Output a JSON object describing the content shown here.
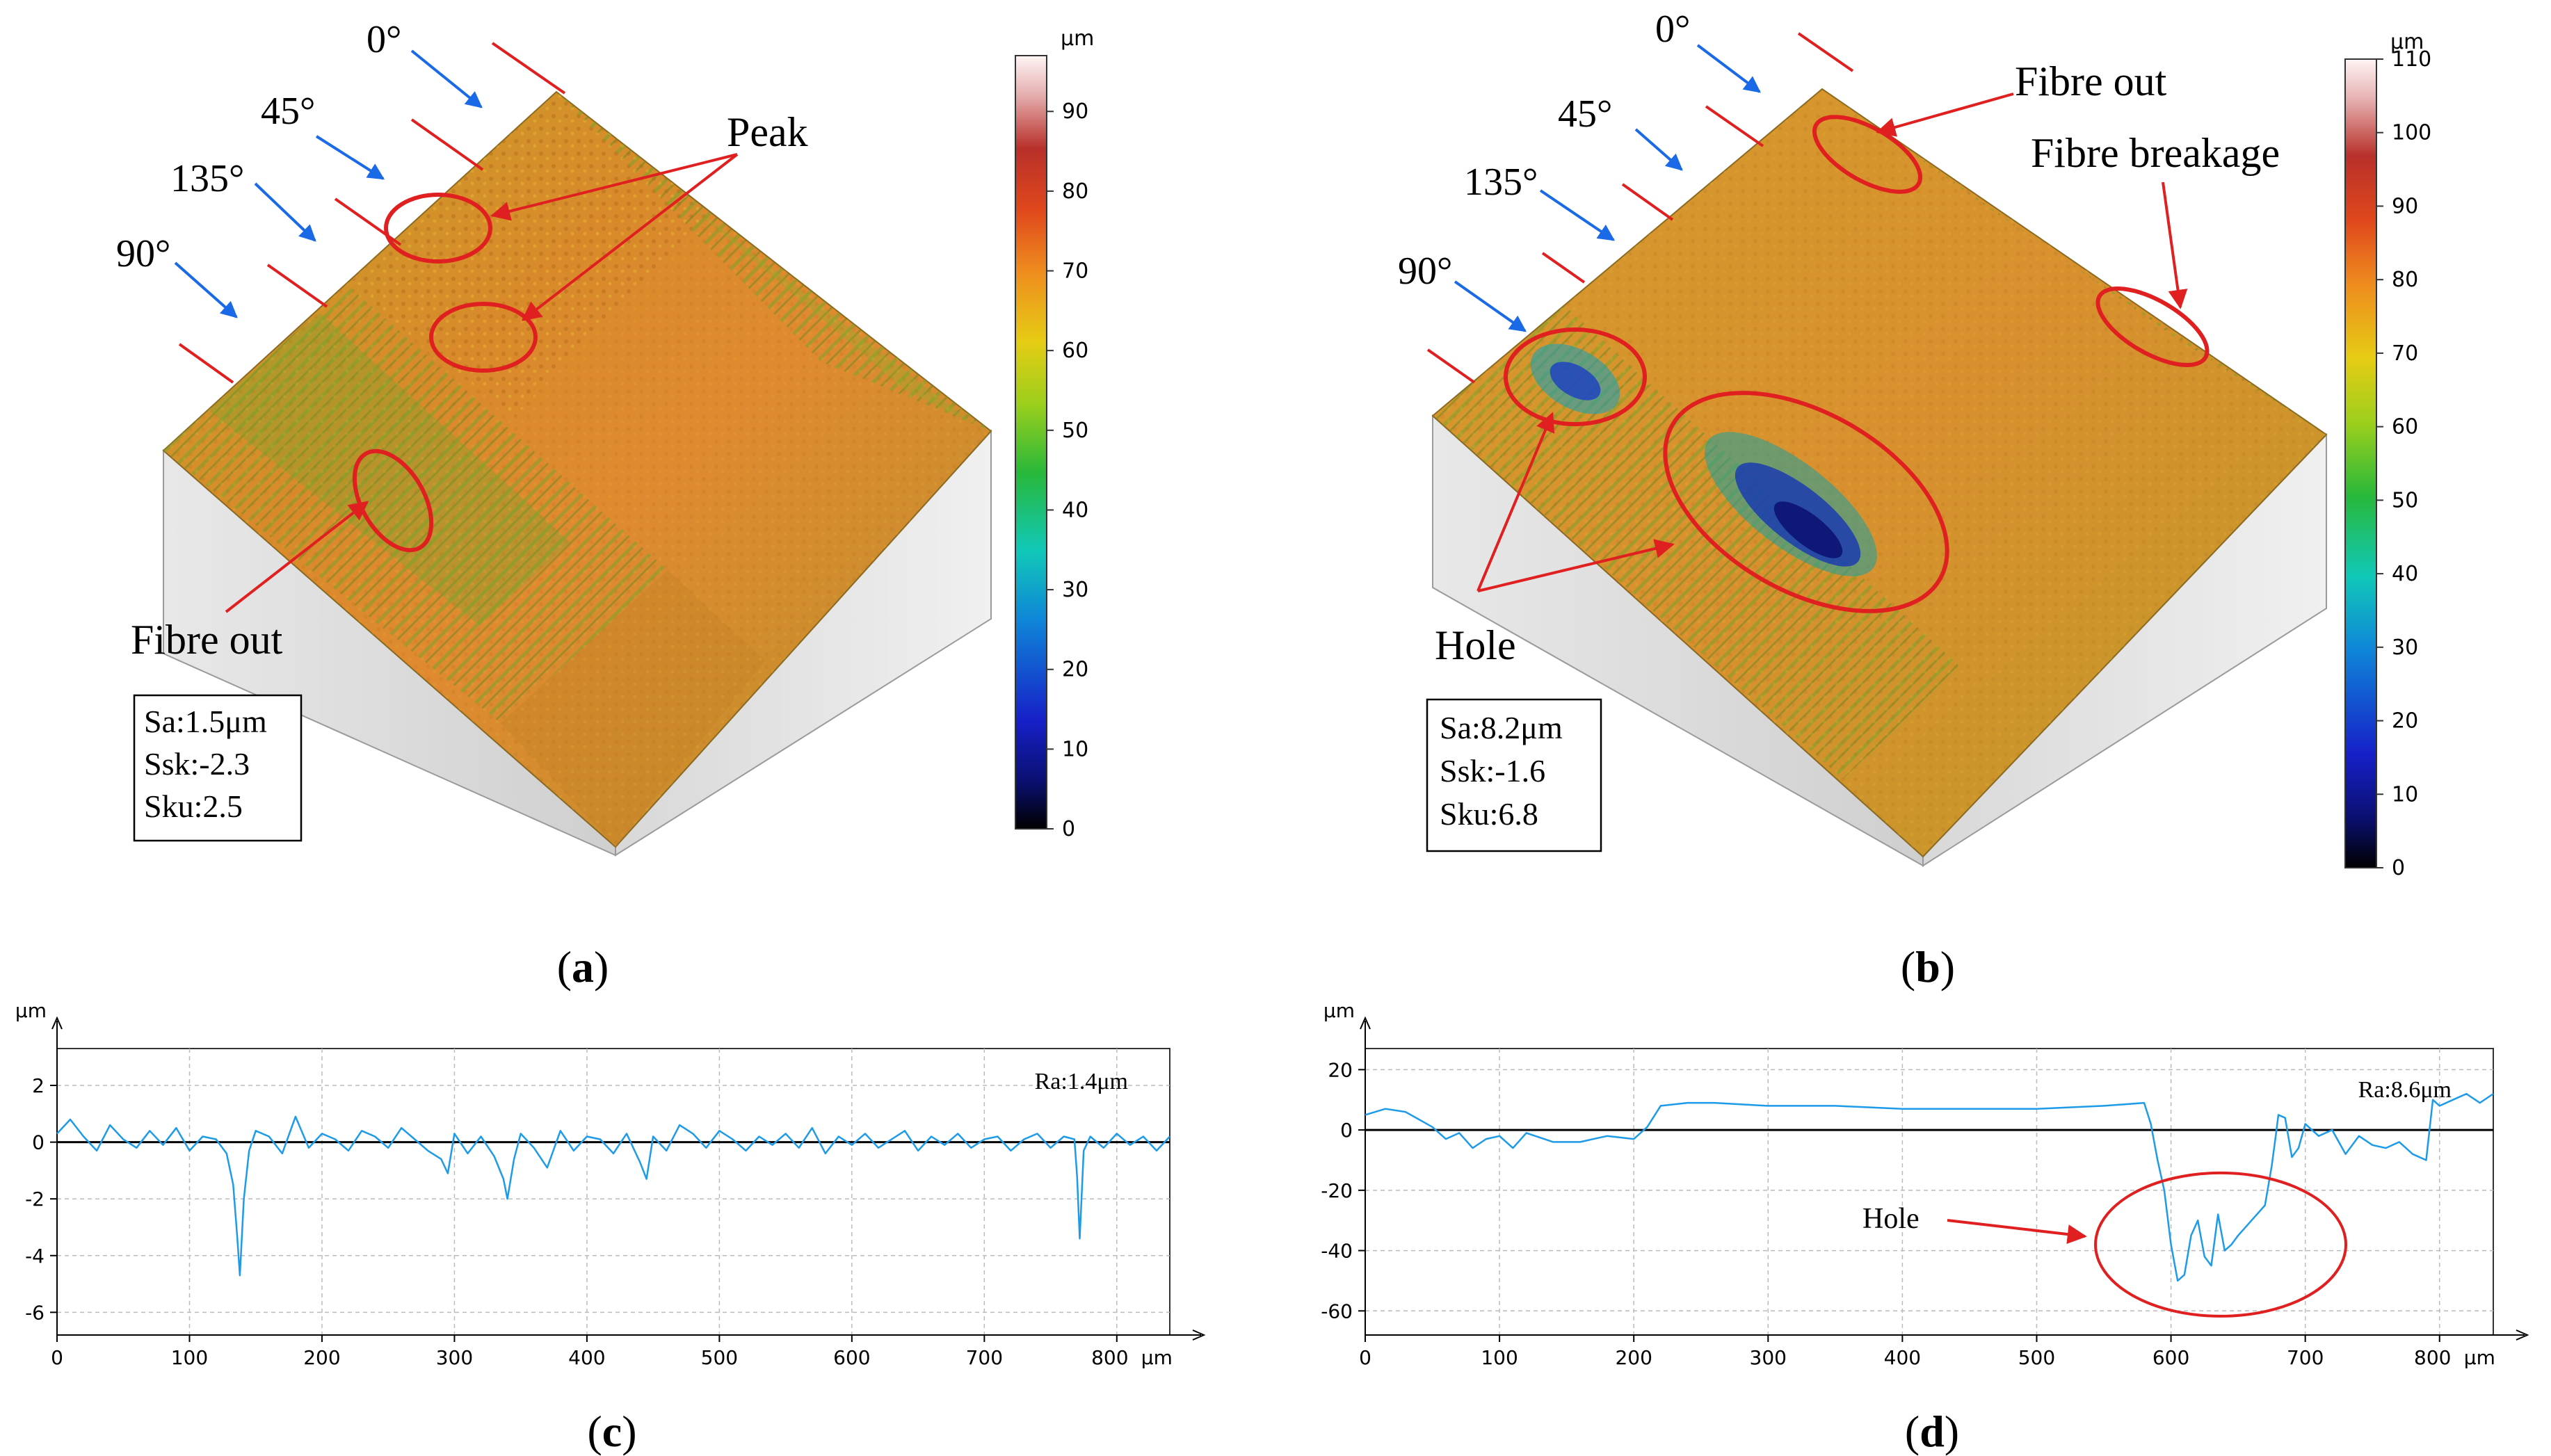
{
  "figure": {
    "panel_a": {
      "label_open": "(",
      "label_letter": "a",
      "label_close": ")",
      "angles": [
        "0°",
        "45°",
        "135°",
        "90°"
      ],
      "annotations": [
        "Peak",
        "Fibre out"
      ],
      "stats": [
        "Sa:1.5μm",
        "Ssk:-2.3",
        "Sku:2.5"
      ],
      "colorbar": {
        "unit": "μm",
        "ticks": [
          "0",
          "10",
          "20",
          "30",
          "40",
          "50",
          "60",
          "70",
          "80",
          "90"
        ],
        "min": 0,
        "max": 97
      }
    },
    "panel_b": {
      "label_open": "(",
      "label_letter": "b",
      "label_close": ")",
      "angles": [
        "0°",
        "45°",
        "135°",
        "90°"
      ],
      "annotations": [
        "Fibre out",
        "Fibre breakage",
        "Hole"
      ],
      "stats": [
        "Sa:8.2μm",
        "Ssk:-1.6",
        "Sku:6.8"
      ],
      "colorbar": {
        "unit": "μm",
        "ticks": [
          "0",
          "10",
          "20",
          "30",
          "40",
          "50",
          "60",
          "70",
          "80",
          "90",
          "100",
          "110"
        ],
        "min": 0,
        "max": 110
      }
    },
    "panel_c": {
      "label_open": "(",
      "label_letter": "c",
      "label_close": ")"
    },
    "panel_d": {
      "label_open": "(",
      "label_letter": "d",
      "label_close": ")"
    }
  },
  "chart_data": [
    {
      "type": "line",
      "panel": "c",
      "ylabel": "μm",
      "xlabel": "μm",
      "annotation": "Ra:1.4μm",
      "xlim": [
        0,
        840
      ],
      "ylim": [
        -6.8,
        3.3
      ],
      "xticks": [
        0,
        100,
        200,
        300,
        400,
        500,
        600,
        700,
        800
      ],
      "yticks": [
        2,
        0,
        -2,
        -4,
        -6
      ],
      "x": [
        0,
        10,
        20,
        30,
        40,
        50,
        60,
        70,
        80,
        90,
        100,
        110,
        120,
        128,
        133,
        136,
        138,
        141,
        145,
        150,
        160,
        170,
        180,
        190,
        200,
        210,
        220,
        230,
        240,
        250,
        260,
        270,
        280,
        290,
        295,
        300,
        310,
        320,
        330,
        337,
        340,
        345,
        350,
        360,
        370,
        380,
        390,
        400,
        410,
        420,
        430,
        440,
        445,
        450,
        460,
        470,
        480,
        490,
        500,
        510,
        520,
        530,
        540,
        550,
        560,
        570,
        580,
        590,
        600,
        610,
        620,
        630,
        640,
        650,
        660,
        670,
        680,
        690,
        700,
        710,
        720,
        730,
        740,
        750,
        760,
        768,
        770,
        772,
        775,
        780,
        790,
        800,
        810,
        820,
        830,
        840
      ],
      "y": [
        0.3,
        0.8,
        0.2,
        -0.3,
        0.6,
        0.1,
        -0.2,
        0.4,
        -0.1,
        0.5,
        -0.3,
        0.2,
        0.1,
        -0.4,
        -1.5,
        -3.3,
        -4.7,
        -2.0,
        -0.3,
        0.4,
        0.2,
        -0.4,
        0.9,
        -0.2,
        0.3,
        0.1,
        -0.3,
        0.4,
        0.2,
        -0.2,
        0.5,
        0.1,
        -0.3,
        -0.6,
        -1.1,
        0.3,
        -0.4,
        0.2,
        -0.5,
        -1.3,
        -2.0,
        -0.6,
        0.3,
        -0.2,
        -0.9,
        0.4,
        -0.3,
        0.2,
        0.1,
        -0.4,
        0.3,
        -0.7,
        -1.3,
        0.2,
        -0.3,
        0.6,
        0.3,
        -0.2,
        0.4,
        0.1,
        -0.3,
        0.2,
        -0.1,
        0.3,
        -0.2,
        0.5,
        -0.4,
        0.2,
        -0.1,
        0.3,
        -0.2,
        0.1,
        0.4,
        -0.3,
        0.2,
        -0.1,
        0.3,
        -0.2,
        0.1,
        0.2,
        -0.3,
        0.1,
        0.3,
        -0.2,
        0.2,
        0.1,
        -1.2,
        -3.4,
        -0.3,
        0.2,
        -0.2,
        0.3,
        -0.1,
        0.2,
        -0.3,
        0.2
      ]
    },
    {
      "type": "line",
      "panel": "d",
      "ylabel": "μm",
      "xlabel": "μm",
      "annotation": "Ra:8.6μm",
      "callout": "Hole",
      "xlim": [
        0,
        840
      ],
      "ylim": [
        -68,
        27
      ],
      "xticks": [
        0,
        100,
        200,
        300,
        400,
        500,
        600,
        700,
        800
      ],
      "yticks": [
        20,
        0,
        -20,
        -40,
        -60
      ],
      "x": [
        0,
        15,
        30,
        50,
        60,
        70,
        80,
        90,
        100,
        110,
        120,
        140,
        160,
        180,
        200,
        210,
        220,
        240,
        260,
        300,
        350,
        400,
        450,
        500,
        550,
        580,
        585,
        590,
        595,
        600,
        605,
        610,
        615,
        620,
        625,
        630,
        635,
        640,
        645,
        650,
        660,
        670,
        675,
        678,
        680,
        685,
        690,
        695,
        700,
        710,
        720,
        730,
        740,
        750,
        760,
        770,
        780,
        790,
        795,
        800,
        810,
        820,
        830,
        840
      ],
      "y": [
        5,
        7,
        6,
        1,
        -3,
        -1,
        -6,
        -3,
        -2,
        -6,
        -1,
        -4,
        -4,
        -2,
        -3,
        1,
        8,
        9,
        9,
        8,
        8,
        7,
        7,
        7,
        8,
        9,
        2,
        -10,
        -20,
        -38,
        -50,
        -48,
        -35,
        -30,
        -42,
        -45,
        -28,
        -40,
        -38,
        -35,
        -30,
        -25,
        -12,
        -2,
        5,
        4,
        -9,
        -6,
        2,
        -2,
        0,
        -8,
        -2,
        -5,
        -6,
        -4,
        -8,
        -10,
        10,
        8,
        10,
        12,
        9,
        12
      ]
    }
  ]
}
